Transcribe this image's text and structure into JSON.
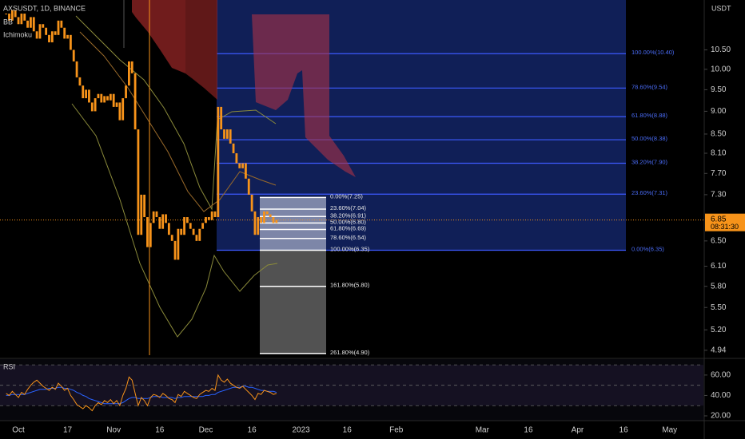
{
  "chart_data": {
    "type": "candlestick",
    "title": "AXSUSDT, 1D, BINANCE",
    "indicators": [
      "BB",
      "Ichimoku"
    ],
    "currency": "USDT",
    "color": "#f7931a",
    "x": [
      "2022-09-27",
      "2022-09-28",
      "2022-09-29",
      "2022-09-30",
      "2022-10-01",
      "2022-10-02",
      "2022-10-03",
      "2022-10-04",
      "2022-10-05",
      "2022-10-06",
      "2022-10-07",
      "2022-10-08",
      "2022-10-09",
      "2022-10-10",
      "2022-10-11",
      "2022-10-12",
      "2022-10-13",
      "2022-10-14",
      "2022-10-15",
      "2022-10-16",
      "2022-10-17",
      "2022-10-18",
      "2022-10-19",
      "2022-10-20",
      "2022-10-21",
      "2022-10-22",
      "2022-10-23",
      "2022-10-24",
      "2022-10-25",
      "2022-10-26",
      "2022-10-27",
      "2022-10-28",
      "2022-10-29",
      "2022-10-30",
      "2022-10-31",
      "2022-11-01",
      "2022-11-02",
      "2022-11-03",
      "2022-11-04",
      "2022-11-05",
      "2022-11-06",
      "2022-11-07",
      "2022-11-08",
      "2022-11-09",
      "2022-11-10",
      "2022-11-11",
      "2022-11-12",
      "2022-11-13",
      "2022-11-14",
      "2022-11-15",
      "2022-11-16",
      "2022-11-17",
      "2022-11-18",
      "2022-11-19",
      "2022-11-20",
      "2022-11-21",
      "2022-11-22",
      "2022-11-23",
      "2022-11-24",
      "2022-11-25",
      "2022-11-26",
      "2022-11-27",
      "2022-11-28",
      "2022-11-29",
      "2022-11-30",
      "2022-12-01",
      "2022-12-02",
      "2022-12-03",
      "2022-12-04",
      "2022-12-05",
      "2022-12-06",
      "2022-12-07",
      "2022-12-08",
      "2022-12-09",
      "2022-12-10",
      "2022-12-11",
      "2022-12-12",
      "2022-12-13",
      "2022-12-14",
      "2022-12-15",
      "2022-12-16",
      "2022-12-17",
      "2022-12-18",
      "2022-12-19",
      "2022-12-20",
      "2022-12-21",
      "2022-12-22",
      "2022-12-23",
      "2022-12-24"
    ],
    "values": [
      11.5,
      11.3,
      11.6,
      11.4,
      11.2,
      11.5,
      11.3,
      11.1,
      11.4,
      11.0,
      10.8,
      11.2,
      11.1,
      10.9,
      10.7,
      11.0,
      10.9,
      11.3,
      11.1,
      10.8,
      10.9,
      10.5,
      10.2,
      9.8,
      9.6,
      9.3,
      9.5,
      9.2,
      9.0,
      9.3,
      9.4,
      9.2,
      9.35,
      9.25,
      9.4,
      9.1,
      9.2,
      8.8,
      9.3,
      9.6,
      10.2,
      9.9,
      8.6,
      6.6,
      7.3,
      6.9,
      6.4,
      6.8,
      7.0,
      6.9,
      6.7,
      6.95,
      6.8,
      6.6,
      6.5,
      6.2,
      6.7,
      6.6,
      6.9,
      6.8,
      6.7,
      6.6,
      6.5,
      6.7,
      6.8,
      6.9,
      6.85,
      7.0,
      6.9,
      9.1,
      8.6,
      8.4,
      8.6,
      8.3,
      8.1,
      7.9,
      7.8,
      7.9,
      7.6,
      7.3,
      7.0,
      6.6,
      6.9,
      6.8,
      7.0,
      6.95,
      6.9,
      6.8,
      6.85
    ],
    "xlim": [
      "2022-09-25",
      "2023-05-12"
    ],
    "xticks": [
      {
        "value": "2022-10-01",
        "label": "Oct"
      },
      {
        "value": "2022-10-17",
        "label": "17"
      },
      {
        "value": "2022-11-01",
        "label": "Nov"
      },
      {
        "value": "2022-11-16",
        "label": "16"
      },
      {
        "value": "2022-12-01",
        "label": "Dec"
      },
      {
        "value": "2022-12-16",
        "label": "16"
      },
      {
        "value": "2023-01-01",
        "label": "2023"
      },
      {
        "value": "2023-01-16",
        "label": "16"
      },
      {
        "value": "2023-02-01",
        "label": "Feb"
      },
      {
        "value": "2023-03-01",
        "label": "Mar"
      },
      {
        "value": "2023-03-16",
        "label": "16"
      },
      {
        "value": "2023-04-01",
        "label": "Apr"
      },
      {
        "value": "2023-04-16",
        "label": "16"
      },
      {
        "value": "2023-05-01",
        "label": "May"
      }
    ],
    "ylim": [
      4.85,
      11.9
    ],
    "log_scale": true,
    "yticks": [
      {
        "value": 10.5,
        "label": "10.50"
      },
      {
        "value": 10,
        "label": "10.00"
      },
      {
        "value": 9.5,
        "label": "9.50"
      },
      {
        "value": 9,
        "label": "9.00"
      },
      {
        "value": 8.5,
        "label": "8.50"
      },
      {
        "value": 8.1,
        "label": "8.10"
      },
      {
        "value": 7.7,
        "label": "7.70"
      },
      {
        "value": 7.3,
        "label": "7.30"
      },
      {
        "value": 6.5,
        "label": "6.50"
      },
      {
        "value": 6.1,
        "label": "6.10"
      },
      {
        "value": 5.8,
        "label": "5.80"
      },
      {
        "value": 5.5,
        "label": "5.50"
      },
      {
        "value": 5.2,
        "label": "5.20"
      },
      4.94
    ],
    "last_price": 6.85,
    "countdown": "08:31:30",
    "fib_retracements": [
      {
        "color": "#3d5afe",
        "values": [
          10.4,
          9.54,
          8.88,
          8.38,
          7.9,
          7.31,
          6.35
        ],
        "value_labels": [
          "100.00%(10.40)",
          "78.60%(9.54)",
          "61.80%(8.88)",
          "50.00%(8.38)",
          "38.20%(7.90)",
          "23.60%(7.31)",
          "0.00%(6.35)"
        ]
      },
      {
        "color": "#ffffff",
        "values": [
          7.25,
          7.04,
          6.91,
          6.8,
          6.69,
          6.54,
          6.35,
          5.8,
          4.9
        ],
        "value_labels": [
          "0.00%(7.25)",
          "23.60%(7.04)",
          "38.20%(6.91)",
          "50.00%(6.80)",
          "61.80%(6.69)",
          "78.60%(6.54)",
          "100.00%(6.35)",
          "161.80%(5.80)",
          "261.80%(4.90)"
        ]
      }
    ],
    "rsi": {
      "title": "RSI",
      "color": "#f7931a",
      "ma_color": "#2962ff",
      "values": [
        42,
        40,
        44,
        41,
        38,
        43,
        41,
        46,
        50,
        53,
        55,
        52,
        49,
        47,
        45,
        48,
        46,
        52,
        49,
        45,
        47,
        40,
        36,
        31,
        29,
        27,
        30,
        28,
        25,
        30,
        33,
        31,
        35,
        33,
        36,
        32,
        35,
        30,
        40,
        47,
        58,
        55,
        42,
        30,
        38,
        35,
        30,
        38,
        41,
        40,
        38,
        42,
        40,
        37,
        36,
        33,
        41,
        39,
        44,
        42,
        40,
        38,
        37,
        41,
        43,
        45,
        44,
        47,
        45,
        60,
        55,
        53,
        56,
        52,
        50,
        48,
        47,
        49,
        46,
        43,
        40,
        36,
        42,
        41,
        45,
        44,
        43,
        41,
        42
      ],
      "ma": [
        40,
        40,
        41,
        41,
        41,
        41,
        41,
        42,
        43,
        44,
        45,
        46,
        46,
        46,
        47,
        47,
        47,
        48,
        48,
        47,
        47,
        46,
        45,
        43,
        42,
        40,
        39,
        37,
        36,
        35,
        34,
        33,
        32,
        32,
        32,
        32,
        32,
        32,
        33,
        35,
        37,
        38,
        38,
        37,
        37,
        37,
        37,
        38,
        39,
        39,
        39,
        38,
        38,
        38,
        38,
        37,
        38,
        38,
        39,
        39,
        39,
        39,
        39,
        39,
        39,
        40,
        40,
        41,
        41,
        43,
        44,
        45,
        46,
        47,
        48,
        48,
        48,
        49,
        49,
        48,
        48,
        47,
        46,
        45,
        45,
        44,
        44,
        44,
        43
      ],
      "levels": [
        70,
        50,
        30
      ],
      "ylim": [
        15.3,
        74
      ],
      "yticks": [
        {
          "value": 60,
          "label": "60.00"
        },
        {
          "value": 40,
          "label": "40.00"
        },
        {
          "value": 20,
          "label": "20.00"
        }
      ]
    }
  }
}
